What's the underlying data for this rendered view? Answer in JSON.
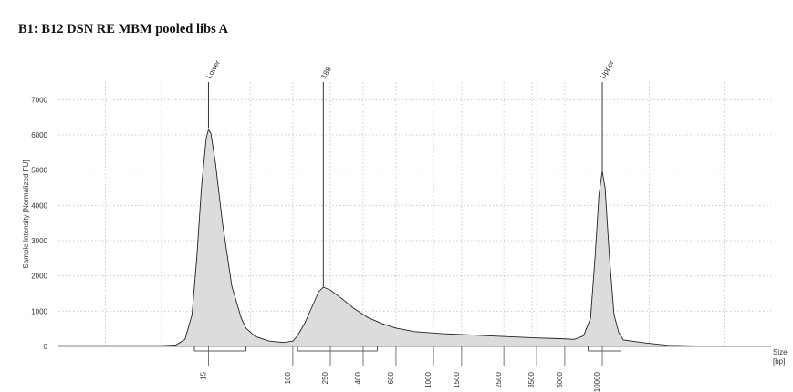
{
  "page": {
    "title": "B1: B12 DSN RE MBM pooled libs A"
  },
  "chart_data": {
    "type": "area",
    "title": "B1: B12 DSN RE MBM pooled libs A",
    "ylabel": "Sample Intensity [Normalized FU]",
    "xlabel": "Size [bp]",
    "xlabel_lines": [
      "Size",
      "[bp]"
    ],
    "ylim": [
      0,
      7500
    ],
    "yticks": [
      0,
      1000,
      2000,
      3000,
      4000,
      5000,
      6000,
      7000
    ],
    "xticks": [
      "15",
      "100",
      "250",
      "400",
      "600",
      "1000",
      "1500",
      "2500",
      "3500",
      "5000",
      "10000"
    ],
    "xtick_positions": [
      1.0,
      2.8,
      3.6,
      4.3,
      5.0,
      5.8,
      6.4,
      7.3,
      8.0,
      8.6,
      9.4
    ],
    "xlim": [
      -2.2,
      13.0
    ],
    "peaks": [
      {
        "label": "Lower",
        "x": 1.0,
        "y": 6200
      },
      {
        "label": "188",
        "x": 3.45,
        "y": 1680
      },
      {
        "label": "Upper",
        "x": 9.4,
        "y": 5000
      }
    ],
    "regions": [
      {
        "name": "lower-marker",
        "x_start": 0.7,
        "x_end": 1.8
      },
      {
        "name": "library",
        "x_start": 2.9,
        "x_end": 4.6
      },
      {
        "name": "upper-marker",
        "x_start": 9.1,
        "x_end": 9.8
      }
    ],
    "trace": [
      [
        -2.2,
        20
      ],
      [
        -1.0,
        20
      ],
      [
        0.0,
        20
      ],
      [
        0.3,
        40
      ],
      [
        0.5,
        200
      ],
      [
        0.65,
        900
      ],
      [
        0.75,
        2500
      ],
      [
        0.85,
        4500
      ],
      [
        0.95,
        5900
      ],
      [
        1.0,
        6150
      ],
      [
        1.05,
        6050
      ],
      [
        1.15,
        5200
      ],
      [
        1.3,
        3500
      ],
      [
        1.5,
        1700
      ],
      [
        1.7,
        800
      ],
      [
        1.8,
        520
      ],
      [
        2.0,
        280
      ],
      [
        2.3,
        150
      ],
      [
        2.6,
        110
      ],
      [
        2.8,
        150
      ],
      [
        2.9,
        300
      ],
      [
        3.05,
        650
      ],
      [
        3.2,
        1100
      ],
      [
        3.35,
        1550
      ],
      [
        3.45,
        1680
      ],
      [
        3.6,
        1600
      ],
      [
        3.85,
        1350
      ],
      [
        4.1,
        1080
      ],
      [
        4.4,
        820
      ],
      [
        4.7,
        650
      ],
      [
        5.0,
        520
      ],
      [
        5.4,
        420
      ],
      [
        6.0,
        360
      ],
      [
        6.5,
        330
      ],
      [
        7.0,
        300
      ],
      [
        7.5,
        270
      ],
      [
        8.0,
        240
      ],
      [
        8.5,
        220
      ],
      [
        8.8,
        200
      ],
      [
        9.0,
        300
      ],
      [
        9.15,
        800
      ],
      [
        9.25,
        2600
      ],
      [
        9.33,
        4300
      ],
      [
        9.4,
        4980
      ],
      [
        9.46,
        4500
      ],
      [
        9.55,
        2600
      ],
      [
        9.65,
        900
      ],
      [
        9.75,
        400
      ],
      [
        9.85,
        180
      ],
      [
        10.3,
        100
      ],
      [
        10.8,
        30
      ],
      [
        11.5,
        10
      ],
      [
        13.0,
        10
      ]
    ]
  }
}
